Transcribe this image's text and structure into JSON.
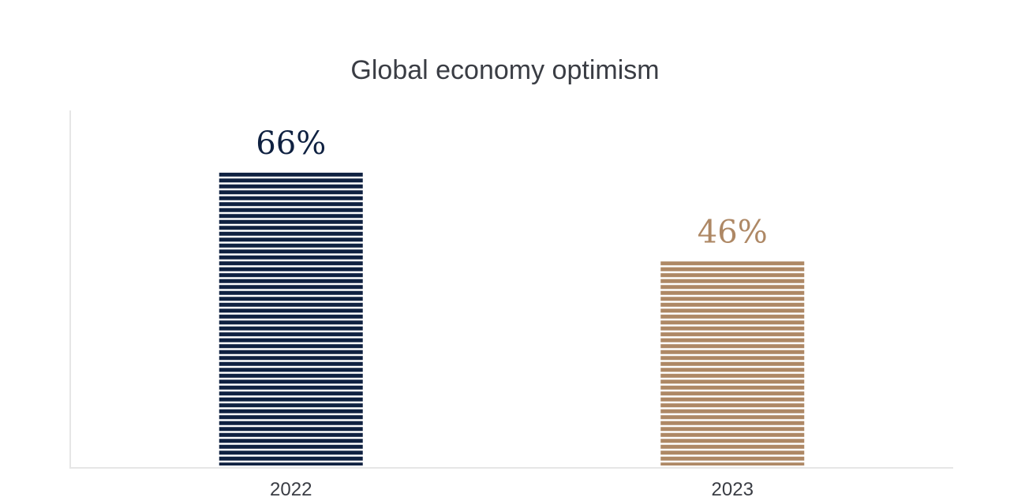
{
  "chart_data": {
    "type": "bar",
    "title": "Global economy optimism",
    "xlabel": "",
    "ylabel": "",
    "categories": [
      "2022",
      "2023"
    ],
    "values": [
      66,
      46
    ],
    "value_labels": [
      "66%",
      "46%"
    ],
    "colors": [
      "#0f2141",
      "#ae8865"
    ],
    "ylim": [
      0,
      80
    ],
    "grid": false,
    "legend": "none"
  }
}
